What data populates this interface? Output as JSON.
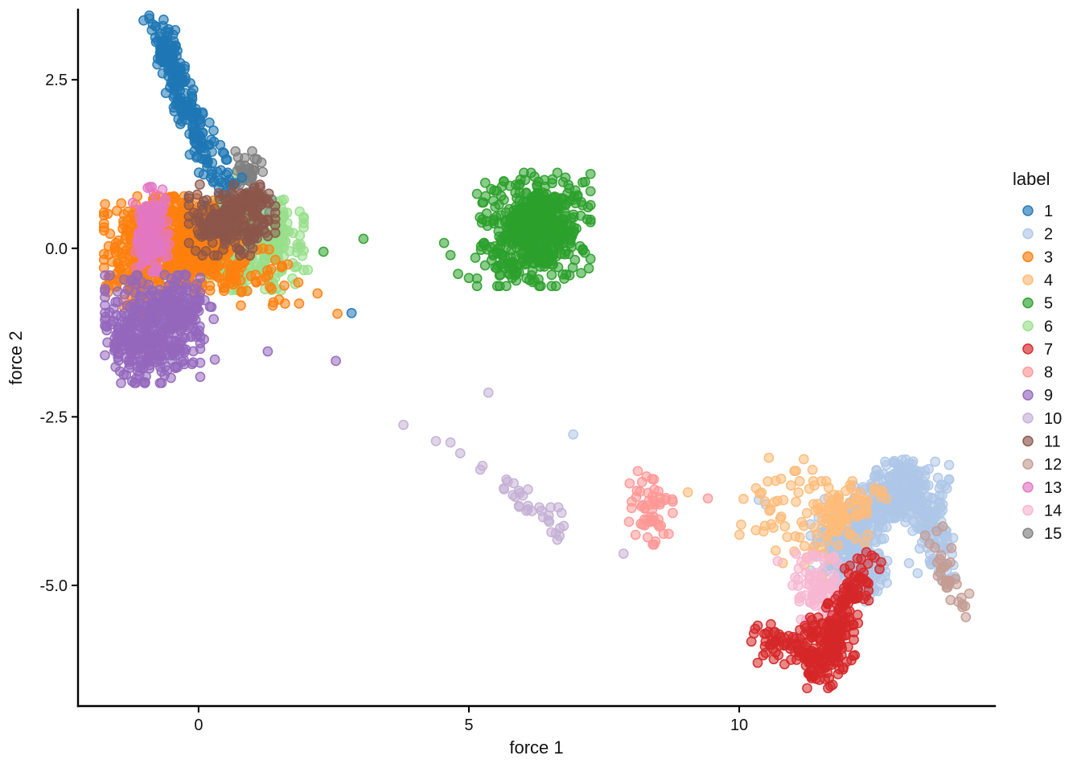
{
  "chart_data": {
    "type": "scatter",
    "title": "",
    "xlabel": "force 1",
    "ylabel": "force 2",
    "xlim": [
      -2.23,
      14.73
    ],
    "ylim": [
      -6.79,
      3.54
    ],
    "xticks": [
      "0",
      "5",
      "10"
    ],
    "xtick_values": [
      0,
      5,
      10
    ],
    "yticks": [
      "2.5",
      "0.0",
      "-2.5",
      "-5.0"
    ],
    "ytick_values": [
      2.5,
      0.0,
      -2.5,
      -5.0
    ],
    "grid": "off",
    "legend_title": "label",
    "legend_position": "right",
    "point_style": {
      "radius": 5.6,
      "fill_opacity": 0.55,
      "stroke_opacity": 0.95,
      "stroke_width": 1.5
    },
    "draw_order": [
      "2",
      "4",
      "12",
      "14",
      "10",
      "8",
      "5",
      "6",
      "15",
      "1",
      "3",
      "11",
      "13",
      "9",
      "7"
    ],
    "series": [
      {
        "name": "1",
        "color": "#1f77b4",
        "blobs": [
          {
            "c": [
              -0.48,
              2.72
            ],
            "s": [
              0.13,
              0.4
            ],
            "rot": 22,
            "n": 140
          },
          {
            "c": [
              -0.12,
              1.95
            ],
            "s": [
              0.12,
              0.3
            ],
            "rot": 29,
            "n": 65
          },
          {
            "c": [
              0.18,
              1.32
            ],
            "s": [
              0.16,
              0.24
            ],
            "rot": 20,
            "n": 38
          },
          {
            "c": [
              0.55,
              0.92
            ],
            "s": [
              0.12,
              0.1
            ],
            "rot": 0,
            "n": 10
          },
          {
            "c": [
              0.2,
              0.55
            ],
            "s": [
              0.07,
              0.07
            ],
            "rot": 0,
            "n": 6
          }
        ],
        "points": [
          [
            2.83,
            -0.96
          ],
          [
            0.49,
            0.97
          ],
          [
            0.67,
            0.97
          ],
          [
            0.6,
            0.74
          ]
        ]
      },
      {
        "name": "2",
        "color": "#aec7e8",
        "blobs": [
          {
            "c": [
              11.95,
              -4.45
            ],
            "s": [
              0.3,
              0.3
            ],
            "rot": 0,
            "n": 140
          },
          {
            "c": [
              12.3,
              -4.9
            ],
            "s": [
              0.3,
              0.2
            ],
            "rot": 0,
            "n": 70
          },
          {
            "c": [
              12.45,
              -3.95
            ],
            "s": [
              0.5,
              0.2
            ],
            "rot": 38,
            "n": 200
          },
          {
            "c": [
              13.0,
              -3.6
            ],
            "s": [
              0.42,
              0.22
            ],
            "rot": 0,
            "n": 180
          },
          {
            "c": [
              13.55,
              -4.2
            ],
            "s": [
              0.16,
              0.38
            ],
            "rot": 29,
            "n": 90
          }
        ],
        "points": [
          [
            10.36,
            -3.73
          ],
          [
            10.49,
            -3.8
          ],
          [
            11.58,
            -3.72
          ],
          [
            6.93,
            -2.76
          ],
          [
            11.9,
            -5.2
          ],
          [
            13.14,
            -4.67
          ],
          [
            13.3,
            -4.82
          ]
        ]
      },
      {
        "name": "3",
        "color": "#ff7f0e",
        "blobs": [
          {
            "c": [
              -0.7,
              0.1
            ],
            "s": [
              0.5,
              0.32
            ],
            "rot": 0,
            "n": 300
          },
          {
            "c": [
              -0.15,
              -0.05
            ],
            "s": [
              0.45,
              0.3
            ],
            "rot": 0,
            "n": 220
          },
          {
            "c": [
              -1.15,
              -0.4
            ],
            "s": [
              0.25,
              0.28
            ],
            "rot": 0,
            "n": 80
          },
          {
            "c": [
              -0.35,
              0.45
            ],
            "s": [
              0.3,
              0.15
            ],
            "rot": 0,
            "n": 60
          },
          {
            "c": [
              0.9,
              -0.45
            ],
            "s": [
              0.45,
              0.22
            ],
            "rot": 0,
            "n": 45
          }
        ],
        "points": [
          [
            1.49,
            -0.76
          ],
          [
            1.86,
            -0.82
          ],
          [
            2.57,
            -0.97
          ],
          [
            1.24,
            -0.43
          ],
          [
            2.2,
            -0.67
          ],
          [
            0.45,
            -0.01
          ],
          [
            1.09,
            -0.02
          ],
          [
            1.35,
            -0.6
          ],
          [
            1.6,
            -0.82
          ]
        ]
      },
      {
        "name": "4",
        "color": "#ffbb78",
        "blobs": [
          {
            "c": [
              11.75,
              -3.98
            ],
            "s": [
              0.3,
              0.25
            ],
            "rot": 0,
            "n": 80
          },
          {
            "c": [
              10.95,
              -3.8
            ],
            "s": [
              0.45,
              0.35
            ],
            "rot": 0,
            "n": 40
          },
          {
            "c": [
              11.2,
              -4.5
            ],
            "s": [
              0.25,
              0.2
            ],
            "rot": 0,
            "n": 12
          },
          {
            "c": [
              12.35,
              -3.72
            ],
            "s": [
              0.2,
              0.12
            ],
            "rot": 0,
            "n": 10
          }
        ],
        "points": [
          [
            9.05,
            -3.62
          ],
          [
            10.45,
            -4.2
          ]
        ]
      },
      {
        "name": "5",
        "color": "#2ca02c",
        "blobs": [
          {
            "c": [
              6.2,
              0.28
            ],
            "s": [
              0.5,
              0.4
            ],
            "rot": 0,
            "n": 420
          },
          {
            "c": [
              6.25,
              0.3
            ],
            "s": [
              0.3,
              0.25
            ],
            "rot": 0,
            "n": 180
          },
          {
            "c": [
              5.6,
              -0.1
            ],
            "s": [
              0.3,
              0.18
            ],
            "rot": 0,
            "n": 14
          }
        ],
        "points": [
          [
            2.31,
            -0.05
          ],
          [
            3.05,
            0.14
          ],
          [
            4.54,
            0.08
          ],
          [
            4.66,
            -0.1
          ],
          [
            4.8,
            -0.38
          ],
          [
            5.0,
            -0.44
          ],
          [
            5.12,
            -0.14
          ],
          [
            5.3,
            0.05
          ],
          [
            5.52,
            -0.3
          ],
          [
            5.8,
            -0.44
          ]
        ]
      },
      {
        "name": "6",
        "color": "#98df8a",
        "blobs": [
          {
            "c": [
              1.0,
              0.05
            ],
            "s": [
              0.45,
              0.32
            ],
            "rot": 0,
            "n": 300
          },
          {
            "c": [
              0.55,
              -0.2
            ],
            "s": [
              0.2,
              0.18
            ],
            "rot": 0,
            "n": 50
          }
        ],
        "points": [
          [
            1.55,
            -0.3
          ],
          [
            1.78,
            -0.28
          ],
          [
            2.02,
            -0.32
          ],
          [
            0.71,
            1.12
          ],
          [
            0.94,
            0.8
          ],
          [
            1.35,
            -0.62
          ],
          [
            1.52,
            -0.01
          ]
        ]
      },
      {
        "name": "7",
        "color": "#d62728",
        "blobs": [
          {
            "c": [
              11.9,
              -5.45
            ],
            "s": [
              0.15,
              0.5
            ],
            "rot": -30,
            "n": 150
          },
          {
            "c": [
              11.55,
              -6.0
            ],
            "s": [
              0.28,
              0.25
            ],
            "rot": 0,
            "n": 110
          },
          {
            "c": [
              10.75,
              -5.88
            ],
            "s": [
              0.25,
              0.15
            ],
            "rot": 0,
            "n": 40
          },
          {
            "c": [
              11.15,
              -5.92
            ],
            "s": [
              0.18,
              0.1
            ],
            "rot": 0,
            "n": 12
          }
        ],
        "points": [
          [
            11.28,
            -6.31
          ],
          [
            11.7,
            -6.18
          ],
          [
            12.05,
            -4.95
          ],
          [
            11.95,
            -4.75
          ],
          [
            10.5,
            -5.72
          ]
        ]
      },
      {
        "name": "8",
        "color": "#ff9896",
        "blobs": [
          {
            "c": [
              8.35,
              -3.85
            ],
            "s": [
              0.2,
              0.26
            ],
            "rot": 0,
            "n": 55
          }
        ],
        "points": [
          [
            8.45,
            -4.35
          ],
          [
            9.42,
            -3.71
          ]
        ]
      },
      {
        "name": "9",
        "color": "#9467bd",
        "blobs": [
          {
            "c": [
              -0.85,
              -1.2
            ],
            "s": [
              0.42,
              0.38
            ],
            "rot": 0,
            "n": 360
          },
          {
            "c": [
              -0.3,
              -0.85
            ],
            "s": [
              0.28,
              0.22
            ],
            "rot": 0,
            "n": 90
          },
          {
            "c": [
              -1.35,
              -1.3
            ],
            "s": [
              0.18,
              0.25
            ],
            "rot": 0,
            "n": 40
          }
        ],
        "points": [
          [
            0.3,
            -1.65
          ],
          [
            1.28,
            -1.53
          ],
          [
            2.54,
            -1.67
          ],
          [
            0.28,
            -1.05
          ],
          [
            0.1,
            -1.35
          ]
        ]
      },
      {
        "name": "10",
        "color": "#c5b0d5",
        "blobs": [
          {
            "c": [
              6.0,
              -3.7
            ],
            "s": [
              0.1,
              0.42
            ],
            "rot": 53,
            "n": 26
          },
          {
            "c": [
              6.55,
              -4.02
            ],
            "s": [
              0.12,
              0.1
            ],
            "rot": 0,
            "n": 8
          }
        ],
        "points": [
          [
            5.36,
            -2.14
          ],
          [
            3.79,
            -2.62
          ],
          [
            4.39,
            -2.86
          ],
          [
            4.66,
            -2.88
          ],
          [
            4.84,
            -3.04
          ],
          [
            7.86,
            -4.53
          ]
        ]
      },
      {
        "name": "11",
        "color": "#8c564b",
        "blobs": [
          {
            "c": [
              0.62,
              0.42
            ],
            "s": [
              0.38,
              0.25
            ],
            "rot": 0,
            "n": 190
          },
          {
            "c": [
              0.95,
              0.7
            ],
            "s": [
              0.18,
              0.12
            ],
            "rot": 0,
            "n": 30
          },
          {
            "c": [
              0.3,
              0.28
            ],
            "s": [
              0.15,
              0.15
            ],
            "rot": 0,
            "n": 30
          }
        ],
        "points": []
      },
      {
        "name": "12",
        "color": "#c49c94",
        "blobs": [
          {
            "c": [
              13.85,
              -4.82
            ],
            "s": [
              0.11,
              0.35
            ],
            "rot": 26,
            "n": 34
          }
        ],
        "points": [
          [
            13.52,
            -4.38
          ],
          [
            13.62,
            -4.44
          ]
        ]
      },
      {
        "name": "13",
        "color": "#e377c2",
        "blobs": [
          {
            "c": [
              -0.88,
              0.28
            ],
            "s": [
              0.16,
              0.3
            ],
            "rot": 0,
            "n": 130
          }
        ],
        "points": [
          [
            -0.85,
            -0.19
          ]
        ]
      },
      {
        "name": "14",
        "color": "#f7b6d2",
        "blobs": [
          {
            "c": [
              11.5,
              -5.05
            ],
            "s": [
              0.26,
              0.24
            ],
            "rot": 0,
            "n": 90
          }
        ],
        "points": [
          [
            10.71,
            -4.64
          ],
          [
            11.05,
            -4.53
          ],
          [
            11.1,
            -4.75
          ]
        ]
      },
      {
        "name": "15",
        "color": "#7f7f7f",
        "blobs": [
          {
            "c": [
              0.95,
              1.02
            ],
            "s": [
              0.2,
              0.2
            ],
            "rot": 0,
            "n": 40
          },
          {
            "c": [
              1.1,
              0.78
            ],
            "s": [
              0.12,
              0.1
            ],
            "rot": 0,
            "n": 10
          }
        ],
        "points": [
          [
            1.31,
            0.53
          ],
          [
            0.73,
            1.35
          ]
        ]
      }
    ]
  }
}
